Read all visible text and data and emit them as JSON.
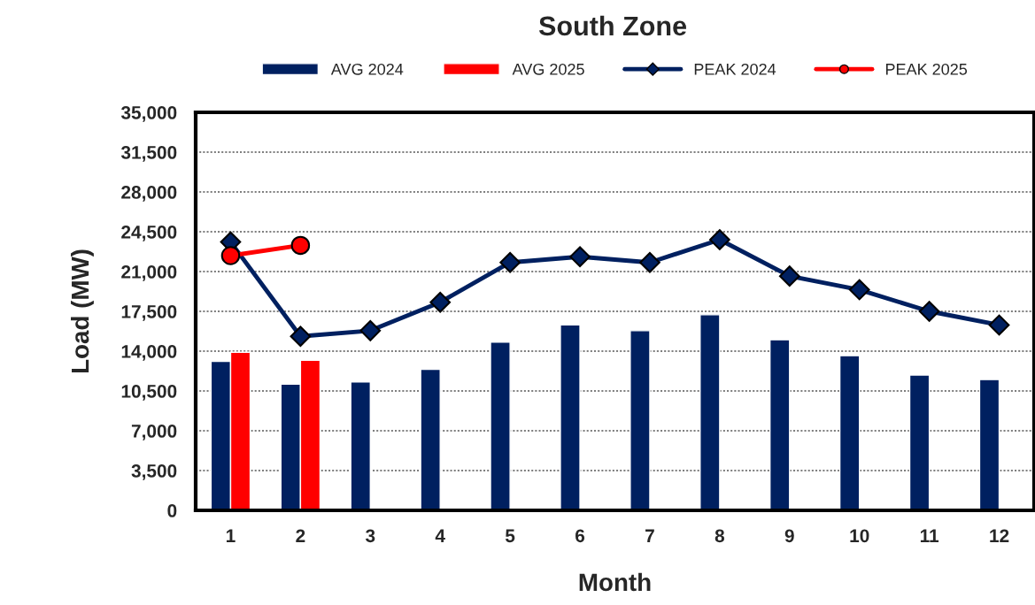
{
  "chart_data": {
    "type": "bar",
    "title": "South Zone",
    "xlabel": "Month",
    "ylabel": "Load (MW)",
    "categories": [
      "1",
      "2",
      "3",
      "4",
      "5",
      "6",
      "7",
      "8",
      "9",
      "10",
      "11",
      "12"
    ],
    "series": [
      {
        "name": "AVG 2024",
        "color": "#002060",
        "values": [
          13100,
          11100,
          11300,
          12400,
          14800,
          16300,
          15800,
          17200,
          15000,
          13600,
          11900,
          11500
        ]
      },
      {
        "name": "AVG 2025",
        "color": "#ff0000",
        "values": [
          13900,
          13200,
          null,
          null,
          null,
          null,
          null,
          null,
          null,
          null,
          null,
          null
        ]
      },
      {
        "name": "PEAK 2024",
        "type": "line",
        "color": "#002060",
        "marker": "diamond",
        "values": [
          23600,
          15300,
          15800,
          18300,
          21800,
          22300,
          21800,
          23800,
          20600,
          19400,
          17500,
          16300
        ]
      },
      {
        "name": "PEAK 2025",
        "type": "line",
        "color": "#ff0000",
        "marker": "circle",
        "values": [
          22400,
          23300,
          null,
          null,
          null,
          null,
          null,
          null,
          null,
          null,
          null,
          null
        ]
      }
    ],
    "ylim": [
      0,
      35000
    ],
    "yticks": [
      {
        "value": 0,
        "label": "0"
      },
      {
        "value": 3500,
        "label": "3,500"
      },
      {
        "value": 7000,
        "label": "7,000"
      },
      {
        "value": 10500,
        "label": "10,500"
      },
      {
        "value": 14000,
        "label": "14,000"
      },
      {
        "value": 17500,
        "label": "17,500"
      },
      {
        "value": 21000,
        "label": "21,000"
      },
      {
        "value": 24500,
        "label": "24,500"
      },
      {
        "value": 28000,
        "label": "28,000"
      },
      {
        "value": 31500,
        "label": "31,500"
      },
      {
        "value": 35000,
        "label": "35,000"
      }
    ],
    "grid": "y",
    "legend": "top"
  }
}
